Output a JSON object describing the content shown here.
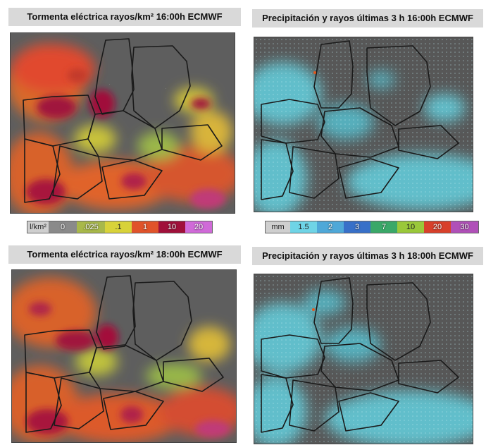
{
  "panels": {
    "top_left": {
      "title": "Tormenta eléctrica rayos/km² 16:00h ECMWF"
    },
    "top_right": {
      "title": "Precipitación y rayos últimas 3 h 16:00h ECMWF"
    },
    "bottom_left": {
      "title": "Tormenta eléctrica rayos/km² 18:00h ECMWF"
    },
    "bottom_right": {
      "title": "Precipitación y rayos últimas 3 h 18:00h ECMWF"
    }
  },
  "legend_lightning": {
    "unit": "l/km²",
    "labels": [
      "0",
      ".025",
      ".1",
      "1",
      "10",
      "20"
    ],
    "colors": [
      "#8a8a8a",
      "#a8b84a",
      "#d8d23a",
      "#e0532a",
      "#a0103a",
      "#d06ad8"
    ]
  },
  "legend_precip": {
    "unit": "mm",
    "labels": [
      "1.5",
      "2",
      "3",
      "7",
      "10",
      "20",
      "30"
    ],
    "colors": [
      "#6fd4e6",
      "#4fa8d8",
      "#3870c8",
      "#3aa868",
      "#9ac83a",
      "#d8402a",
      "#b050b8"
    ]
  },
  "colors": {
    "map_background": "#5a5a5a",
    "region_fill": "#707070",
    "province_border": "#1a1a1a",
    "precip_light": "#63cad8",
    "lightning_marker": "#e05a20"
  }
}
